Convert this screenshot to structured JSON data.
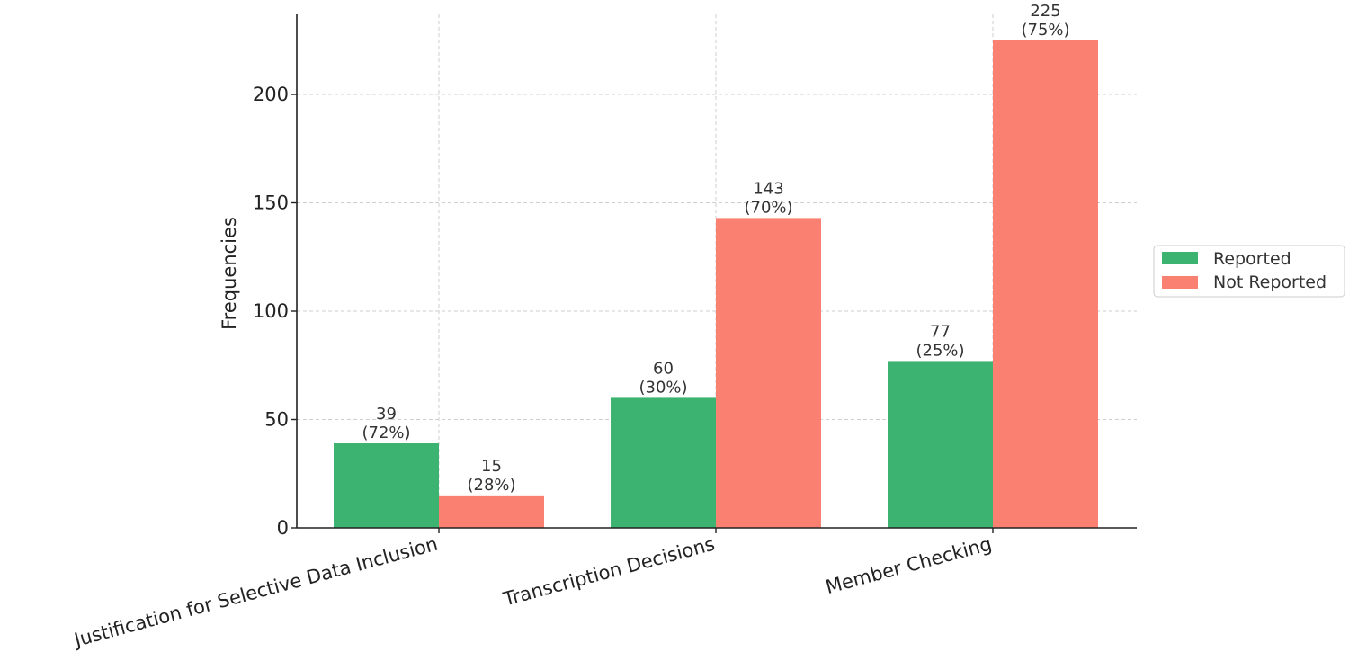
{
  "chart_data": {
    "type": "bar",
    "categories": [
      "Justification for Selective Data Inclusion",
      "Transcription Decisions",
      "Member Checking"
    ],
    "series": [
      {
        "name": "Reported",
        "values": [
          39,
          60,
          77
        ],
        "labels": [
          "39\n(72%)",
          "60\n(30%)",
          "77\n(25%)"
        ],
        "color": "#3cb371"
      },
      {
        "name": "Not Reported",
        "values": [
          15,
          143,
          225
        ],
        "labels": [
          "15\n(28%)",
          "143\n(70%)",
          "225\n(75%)"
        ],
        "color": "#fa8072"
      }
    ],
    "title": "",
    "xlabel": "",
    "ylabel": "Frequencies",
    "ylim": [
      0,
      236.25
    ],
    "yticks": [
      0,
      50,
      100,
      150,
      200
    ],
    "grid": true,
    "legend_position": "right"
  }
}
